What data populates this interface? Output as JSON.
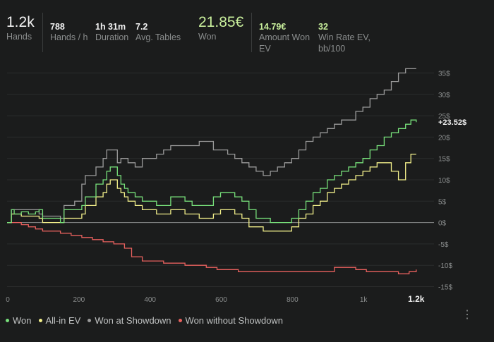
{
  "stats": [
    {
      "value": "1.2k",
      "label": "Hands"
    },
    {
      "value": "788",
      "label": "Hands / h"
    },
    {
      "value": "1h 31m",
      "label": "Duration"
    },
    {
      "value": "7.2",
      "label": "Avg. Tables"
    },
    {
      "value": "21.85€",
      "label": "Won"
    },
    {
      "value": "14.79€",
      "label": "Amount Won EV"
    },
    {
      "value": "32",
      "label": "Win Rate EV, bb/100"
    }
  ],
  "colors": {
    "won": "#77e07a",
    "allin": "#f2ef8a",
    "showdown": "#9a9a9a",
    "noshowdown": "#e8615e",
    "zero": "#8a8d8d",
    "grid": "#2b2d2d"
  },
  "chart_data": {
    "type": "line",
    "x_ticks": [
      "0",
      "200",
      "400",
      "600",
      "800",
      "1k",
      "1.2k"
    ],
    "y_ticks": [
      "35$",
      "30$",
      "25$",
      "20$",
      "15$",
      "10$",
      "5$",
      "0$",
      "-5$",
      "-10$",
      "-15$"
    ],
    "xlim": [
      0,
      1200
    ],
    "ylim": [
      -15,
      35
    ],
    "end_label": "+23.52$",
    "series": [
      {
        "name": "Won",
        "key": "won",
        "points": [
          [
            0,
            0
          ],
          [
            10,
            0
          ],
          [
            12,
            3
          ],
          [
            20,
            2
          ],
          [
            40,
            2.5
          ],
          [
            60,
            2
          ],
          [
            80,
            2.5
          ],
          [
            90,
            3
          ],
          [
            100,
            1
          ],
          [
            120,
            1
          ],
          [
            150,
            0
          ],
          [
            160,
            3
          ],
          [
            190,
            3
          ],
          [
            210,
            4
          ],
          [
            220,
            6
          ],
          [
            250,
            9
          ],
          [
            270,
            10
          ],
          [
            280,
            12
          ],
          [
            290,
            13
          ],
          [
            310,
            11
          ],
          [
            320,
            9
          ],
          [
            330,
            8
          ],
          [
            340,
            7
          ],
          [
            360,
            6
          ],
          [
            380,
            5
          ],
          [
            400,
            5
          ],
          [
            420,
            4
          ],
          [
            440,
            4
          ],
          [
            460,
            6
          ],
          [
            480,
            6
          ],
          [
            500,
            5
          ],
          [
            520,
            4
          ],
          [
            540,
            4
          ],
          [
            560,
            4
          ],
          [
            580,
            6
          ],
          [
            600,
            7
          ],
          [
            620,
            7
          ],
          [
            640,
            6
          ],
          [
            660,
            5
          ],
          [
            680,
            3
          ],
          [
            700,
            1
          ],
          [
            720,
            1
          ],
          [
            740,
            0
          ],
          [
            760,
            0
          ],
          [
            780,
            0
          ],
          [
            800,
            1
          ],
          [
            820,
            3
          ],
          [
            840,
            5
          ],
          [
            860,
            7
          ],
          [
            880,
            8
          ],
          [
            900,
            10
          ],
          [
            920,
            11
          ],
          [
            940,
            12
          ],
          [
            960,
            13
          ],
          [
            980,
            14
          ],
          [
            1000,
            15
          ],
          [
            1020,
            17
          ],
          [
            1040,
            18
          ],
          [
            1060,
            20
          ],
          [
            1080,
            21
          ],
          [
            1100,
            22
          ],
          [
            1120,
            23
          ],
          [
            1135,
            24
          ],
          [
            1150,
            23.5
          ]
        ]
      },
      {
        "name": "All-in EV",
        "key": "allin",
        "points": [
          [
            0,
            0
          ],
          [
            10,
            0
          ],
          [
            12,
            2
          ],
          [
            20,
            2
          ],
          [
            40,
            1.5
          ],
          [
            60,
            1.5
          ],
          [
            80,
            1.5
          ],
          [
            90,
            1
          ],
          [
            100,
            0
          ],
          [
            120,
            0
          ],
          [
            150,
            0
          ],
          [
            160,
            1
          ],
          [
            190,
            1
          ],
          [
            210,
            2
          ],
          [
            220,
            4
          ],
          [
            250,
            6
          ],
          [
            270,
            7
          ],
          [
            280,
            9
          ],
          [
            290,
            10
          ],
          [
            310,
            8
          ],
          [
            320,
            7
          ],
          [
            330,
            6
          ],
          [
            340,
            5
          ],
          [
            360,
            4
          ],
          [
            380,
            3
          ],
          [
            400,
            3
          ],
          [
            420,
            2
          ],
          [
            440,
            2
          ],
          [
            460,
            3
          ],
          [
            480,
            3
          ],
          [
            500,
            2
          ],
          [
            520,
            2
          ],
          [
            540,
            1
          ],
          [
            560,
            1
          ],
          [
            580,
            2
          ],
          [
            600,
            3
          ],
          [
            620,
            3
          ],
          [
            640,
            2
          ],
          [
            660,
            1
          ],
          [
            680,
            -1
          ],
          [
            700,
            -1
          ],
          [
            720,
            -2
          ],
          [
            740,
            -2
          ],
          [
            760,
            -2
          ],
          [
            780,
            -2
          ],
          [
            800,
            -1
          ],
          [
            820,
            1
          ],
          [
            840,
            2
          ],
          [
            860,
            4
          ],
          [
            880,
            5
          ],
          [
            900,
            7
          ],
          [
            920,
            8
          ],
          [
            940,
            9
          ],
          [
            960,
            10
          ],
          [
            980,
            11
          ],
          [
            1000,
            12
          ],
          [
            1020,
            13
          ],
          [
            1040,
            14
          ],
          [
            1060,
            14
          ],
          [
            1080,
            12
          ],
          [
            1100,
            10
          ],
          [
            1120,
            14
          ],
          [
            1135,
            16
          ],
          [
            1150,
            16
          ]
        ]
      },
      {
        "name": "Won at Showdown",
        "key": "showdown",
        "points": [
          [
            0,
            0
          ],
          [
            10,
            0
          ],
          [
            12,
            3
          ],
          [
            20,
            3
          ],
          [
            40,
            3
          ],
          [
            60,
            3
          ],
          [
            80,
            3
          ],
          [
            90,
            2
          ],
          [
            100,
            1.5
          ],
          [
            120,
            1.5
          ],
          [
            150,
            1
          ],
          [
            160,
            4
          ],
          [
            190,
            5
          ],
          [
            210,
            9
          ],
          [
            220,
            11
          ],
          [
            250,
            13
          ],
          [
            270,
            15
          ],
          [
            280,
            17
          ],
          [
            290,
            17
          ],
          [
            310,
            14
          ],
          [
            320,
            15
          ],
          [
            330,
            15
          ],
          [
            340,
            14
          ],
          [
            360,
            13
          ],
          [
            380,
            15
          ],
          [
            400,
            15
          ],
          [
            420,
            16
          ],
          [
            440,
            17
          ],
          [
            460,
            18
          ],
          [
            480,
            18
          ],
          [
            500,
            18
          ],
          [
            520,
            18
          ],
          [
            540,
            19
          ],
          [
            560,
            19
          ],
          [
            580,
            17
          ],
          [
            600,
            17
          ],
          [
            620,
            16
          ],
          [
            640,
            15
          ],
          [
            660,
            14
          ],
          [
            680,
            13
          ],
          [
            700,
            12
          ],
          [
            720,
            11
          ],
          [
            740,
            12
          ],
          [
            760,
            13
          ],
          [
            780,
            14
          ],
          [
            800,
            15
          ],
          [
            820,
            17
          ],
          [
            840,
            19
          ],
          [
            860,
            20
          ],
          [
            880,
            21
          ],
          [
            900,
            22
          ],
          [
            920,
            23
          ],
          [
            940,
            24
          ],
          [
            960,
            24
          ],
          [
            980,
            26
          ],
          [
            1000,
            27
          ],
          [
            1020,
            29
          ],
          [
            1040,
            30
          ],
          [
            1060,
            31
          ],
          [
            1080,
            33
          ],
          [
            1100,
            35
          ],
          [
            1120,
            36
          ],
          [
            1135,
            36
          ],
          [
            1150,
            36
          ]
        ]
      },
      {
        "name": "Won without Showdown",
        "key": "noshowdown",
        "points": [
          [
            0,
            0
          ],
          [
            10,
            0
          ],
          [
            20,
            0
          ],
          [
            40,
            -0.5
          ],
          [
            60,
            -1
          ],
          [
            80,
            -1.5
          ],
          [
            100,
            -2
          ],
          [
            120,
            -2
          ],
          [
            150,
            -2.5
          ],
          [
            180,
            -3
          ],
          [
            210,
            -3.5
          ],
          [
            240,
            -4
          ],
          [
            270,
            -4.5
          ],
          [
            300,
            -5
          ],
          [
            330,
            -6
          ],
          [
            350,
            -8
          ],
          [
            380,
            -9
          ],
          [
            410,
            -9
          ],
          [
            440,
            -9.5
          ],
          [
            470,
            -9.5
          ],
          [
            500,
            -10
          ],
          [
            530,
            -10
          ],
          [
            560,
            -10.5
          ],
          [
            590,
            -11
          ],
          [
            620,
            -11
          ],
          [
            650,
            -11.5
          ],
          [
            680,
            -11.5
          ],
          [
            710,
            -11.5
          ],
          [
            740,
            -11.5
          ],
          [
            770,
            -11.5
          ],
          [
            800,
            -11.5
          ],
          [
            830,
            -11.5
          ],
          [
            860,
            -11.5
          ],
          [
            890,
            -11.5
          ],
          [
            920,
            -10.5
          ],
          [
            950,
            -10.5
          ],
          [
            980,
            -11
          ],
          [
            1010,
            -11.5
          ],
          [
            1040,
            -11.5
          ],
          [
            1070,
            -11.5
          ],
          [
            1100,
            -12
          ],
          [
            1130,
            -11.5
          ],
          [
            1150,
            -11
          ]
        ]
      }
    ]
  },
  "legend": [
    {
      "name": "Won",
      "key": "won"
    },
    {
      "name": "All-in EV",
      "key": "allin"
    },
    {
      "name": "Won at Showdown",
      "key": "showdown"
    },
    {
      "name": "Won without Showdown",
      "key": "noshowdown"
    }
  ]
}
